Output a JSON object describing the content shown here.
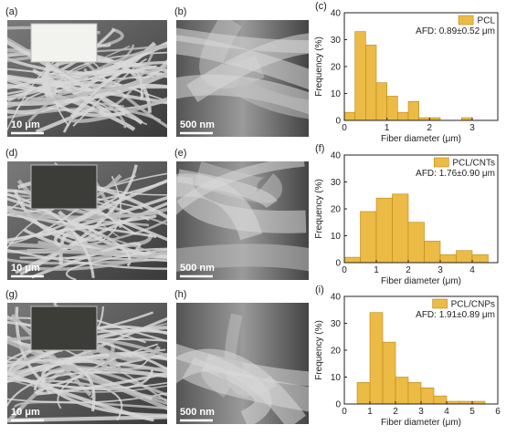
{
  "images": [
    {
      "label": "(a)",
      "scale": "10 μm"
    },
    {
      "label": "(b)",
      "scale": "500 nm"
    },
    {
      "label": "(d)",
      "scale": "10 μm"
    },
    {
      "label": "(e)",
      "scale": "500 nm"
    },
    {
      "label": "(g)",
      "scale": "10 μm"
    },
    {
      "label": "(h)",
      "scale": "500 nm"
    }
  ],
  "chart_data": [
    {
      "type": "histogram",
      "panel": "(c)",
      "x_label": "Fiber diameter (μm)",
      "y_label": "Frequency (%)",
      "series": [
        {
          "name": "PCL",
          "color": "#ebbb45",
          "values": [
            3,
            33,
            28,
            14,
            9,
            3,
            7,
            1,
            1,
            0,
            0,
            1
          ]
        }
      ],
      "bins": [
        0,
        0.25,
        0.5,
        0.75,
        1,
        1.25,
        1.5,
        1.75,
        2,
        2.25,
        2.5,
        2.75,
        3
      ],
      "annotation": "AFD: 0.89±0.52 μm",
      "legend": "upper right",
      "xlim": [
        0,
        3.6
      ],
      "xticks": [
        0,
        1,
        2,
        3
      ],
      "ylim": [
        0,
        40
      ],
      "yticks": [
        0,
        10,
        20,
        30,
        40
      ]
    },
    {
      "type": "histogram",
      "panel": "(f)",
      "x_label": "Fiber diameter (μm)",
      "y_label": "Frequency (%)",
      "series": [
        {
          "name": "PCL/CNTs",
          "color": "#ebbb45",
          "values": [
            2,
            19,
            24,
            25.5,
            15,
            8,
            3,
            4.5,
            3
          ]
        }
      ],
      "bins": [
        0,
        0.5,
        1,
        1.5,
        2,
        2.5,
        3,
        3.5,
        4,
        4.5
      ],
      "annotation": "AFD: 1.76±0.90 μm",
      "legend": "upper right",
      "xlim": [
        0,
        4.8
      ],
      "xticks": [
        0,
        1,
        2,
        3,
        4
      ],
      "ylim": [
        0,
        40
      ],
      "yticks": [
        0,
        10,
        20,
        30,
        40
      ]
    },
    {
      "type": "histogram",
      "panel": "(i)",
      "x_label": "Fiber diameter (μm)",
      "y_label": "Frequency (%)",
      "series": [
        {
          "name": "PCL/CNPs",
          "color": "#ebbb45",
          "values": [
            8,
            34,
            23,
            10,
            8,
            6,
            3,
            1,
            1,
            1
          ]
        }
      ],
      "bins": [
        0.5,
        1,
        1.5,
        2,
        2.5,
        3,
        3.5,
        4,
        4.5,
        5,
        5.5
      ],
      "annotation": "AFD: 1.91±0.89 μm",
      "legend": "upper right",
      "xlim": [
        0,
        6
      ],
      "xticks": [
        0,
        1,
        2,
        3,
        4,
        5,
        6
      ],
      "ylim": [
        0,
        40
      ],
      "yticks": [
        0,
        10,
        20,
        30,
        40
      ]
    }
  ]
}
